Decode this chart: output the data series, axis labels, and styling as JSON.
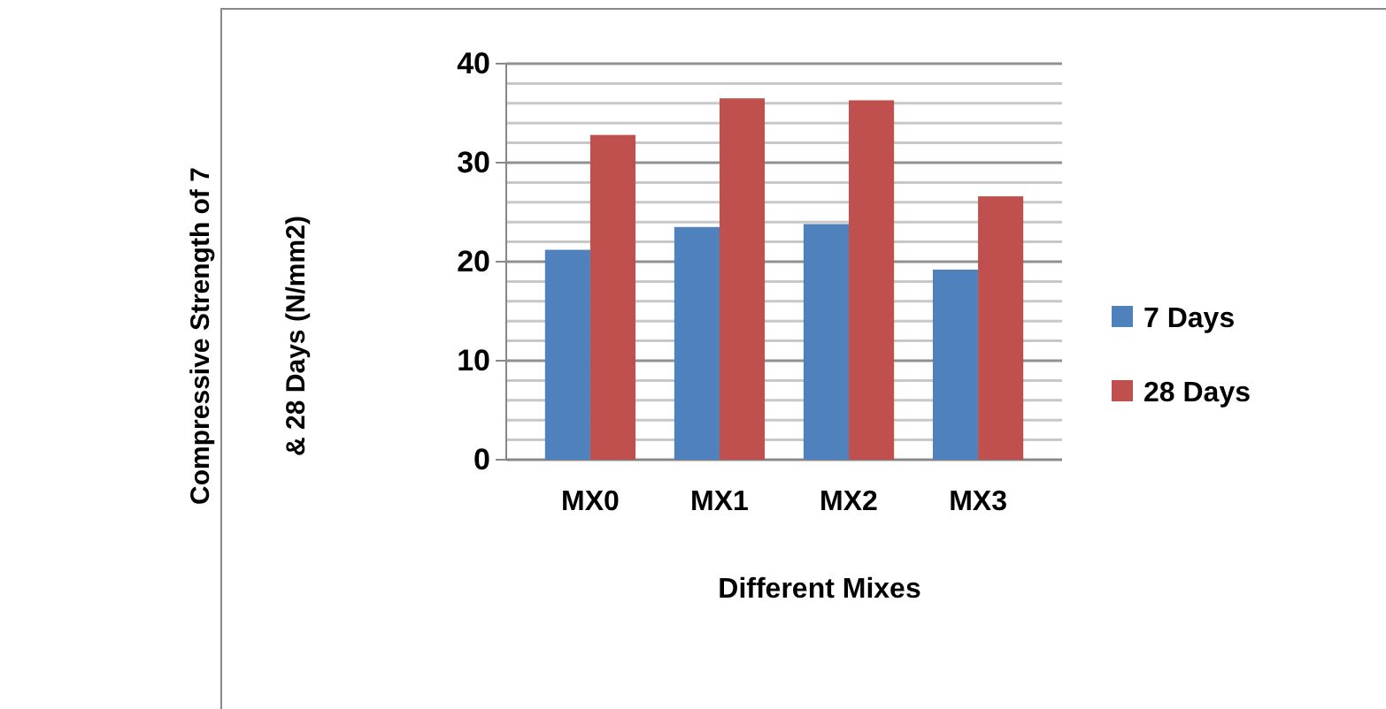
{
  "chart_data": {
    "type": "bar",
    "xlabel": "Different Mixes",
    "ylabel": "Compressive Strength of 7 & 28 Days (N/mm2)",
    "categories": [
      "MX0",
      "MX1",
      "MX2",
      "MX3"
    ],
    "series": [
      {
        "name": "7 Days",
        "color": "#4f81bd",
        "values": [
          21.2,
          23.5,
          23.8,
          19.2
        ]
      },
      {
        "name": "28 Days",
        "color": "#c0504d",
        "values": [
          32.8,
          36.5,
          36.3,
          26.6
        ]
      }
    ],
    "ylim": [
      0,
      40
    ],
    "yticks": [
      0,
      {
        "value": 2,
        "label": null
      },
      {
        "value": 4,
        "label": null
      },
      {
        "value": 6,
        "label": null
      },
      {
        "value": 8,
        "label": null
      },
      10,
      {
        "value": 12,
        "label": null
      },
      {
        "value": 14,
        "label": null
      },
      {
        "value": 16,
        "label": null
      },
      {
        "value": 18,
        "label": null
      },
      20,
      {
        "value": 22,
        "label": null
      },
      {
        "value": 24,
        "label": null
      },
      {
        "value": 26,
        "label": null
      },
      {
        "value": 28,
        "label": null
      },
      30,
      {
        "value": 32,
        "label": null
      },
      {
        "value": 34,
        "label": null
      },
      {
        "value": 36,
        "label": null
      },
      {
        "value": 38,
        "label": null
      },
      40
    ],
    "grid": "y",
    "legend": "right"
  }
}
